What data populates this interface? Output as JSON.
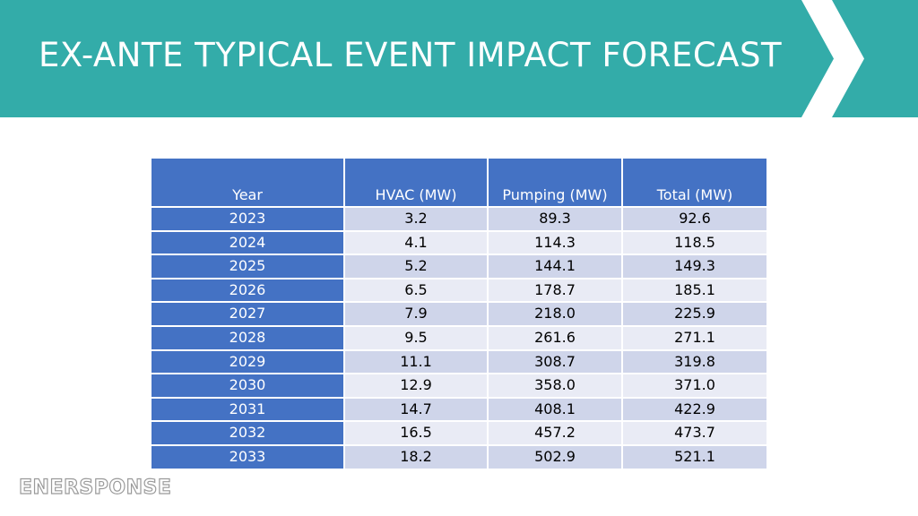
{
  "slide": {
    "title": "EX-ANTE TYPICAL EVENT IMPACT FORECAST"
  },
  "colors": {
    "header_band": "#33aca9",
    "table_header": "#4472c4",
    "row_odd": "#cfd5ea",
    "row_even": "#e9ebf5"
  },
  "table": {
    "headers": [
      "Year",
      "HVAC (MW)",
      "Pumping (MW)",
      "Total (MW)"
    ],
    "rows": [
      [
        "2023",
        "3.2",
        "89.3",
        "92.6"
      ],
      [
        "2024",
        "4.1",
        "114.3",
        "118.5"
      ],
      [
        "2025",
        "5.2",
        "144.1",
        "149.3"
      ],
      [
        "2026",
        "6.5",
        "178.7",
        "185.1"
      ],
      [
        "2027",
        "7.9",
        "218.0",
        "225.9"
      ],
      [
        "2028",
        "9.5",
        "261.6",
        "271.1"
      ],
      [
        "2029",
        "11.1",
        "308.7",
        "319.8"
      ],
      [
        "2030",
        "12.9",
        "358.0",
        "371.0"
      ],
      [
        "2031",
        "14.7",
        "408.1",
        "422.9"
      ],
      [
        "2032",
        "16.5",
        "457.2",
        "473.7"
      ],
      [
        "2033",
        "18.2",
        "502.9",
        "521.1"
      ]
    ]
  },
  "logo": {
    "text": "ENERSPONSE"
  }
}
